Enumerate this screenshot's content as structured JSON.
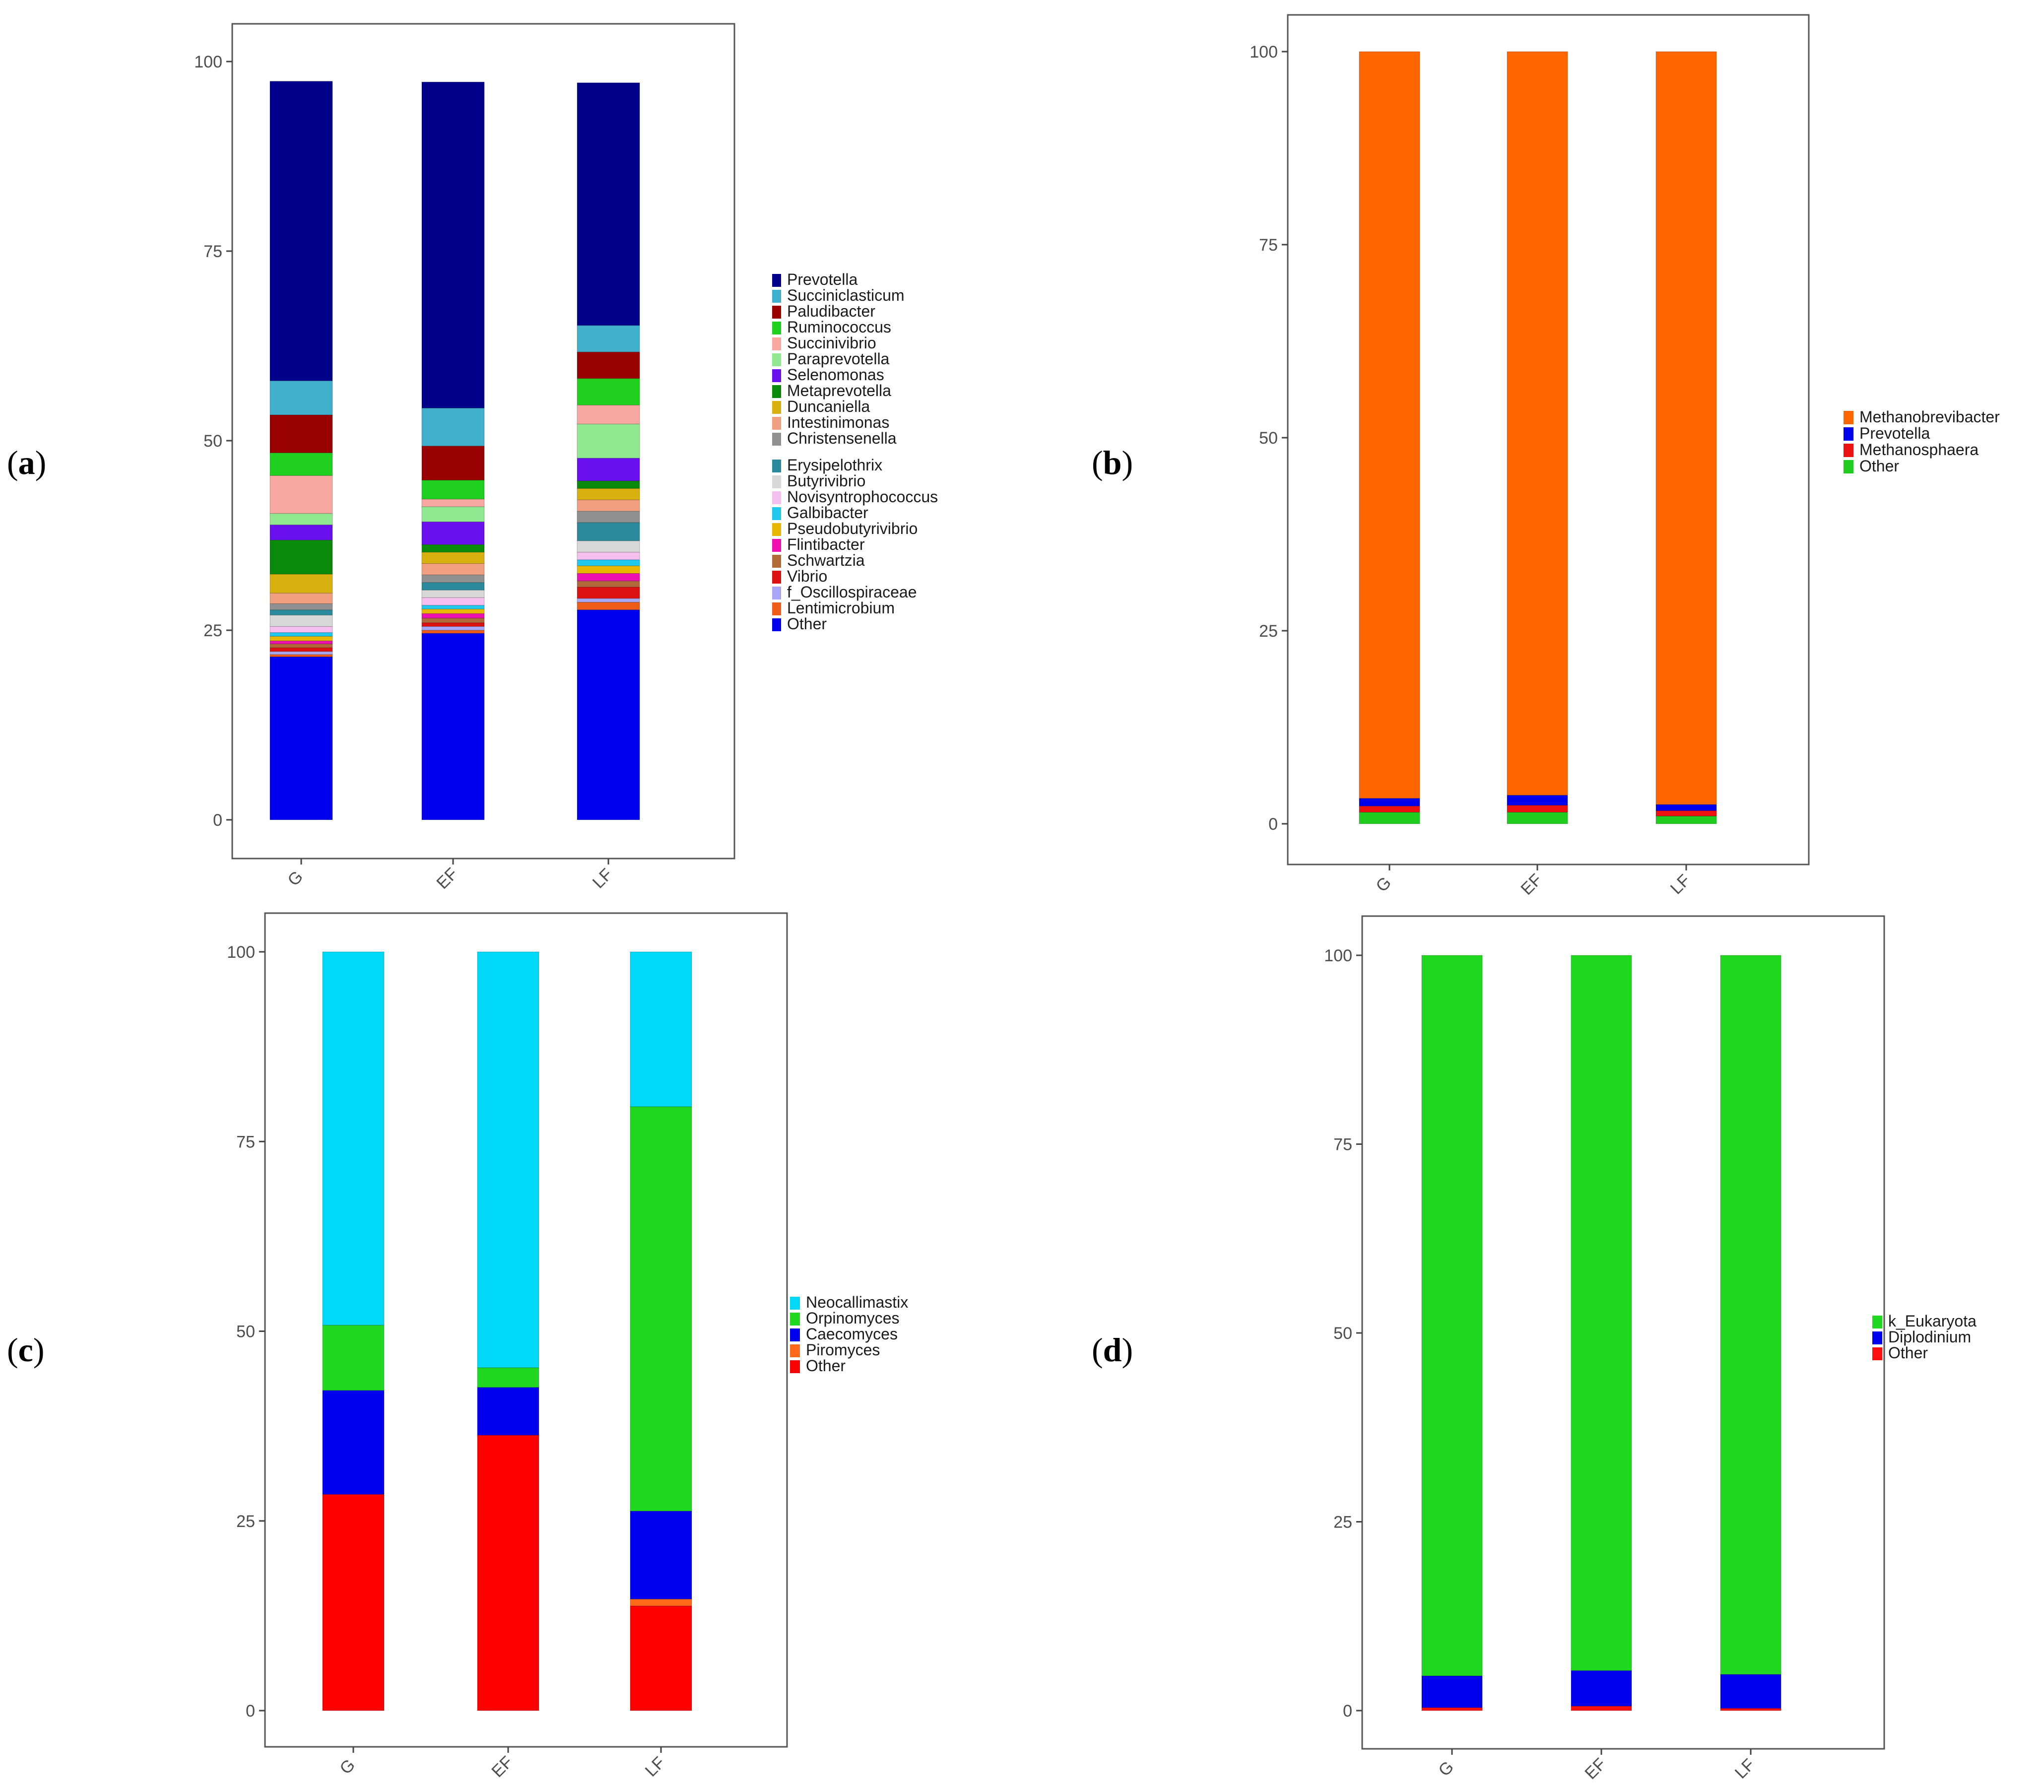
{
  "chart_data": [
    {
      "panel_label": "a",
      "type": "bar",
      "stacked": true,
      "categories": [
        "G",
        "EF",
        "LF"
      ],
      "ylim": [
        0,
        100
      ],
      "yticks": [
        0,
        25,
        50,
        75,
        100
      ],
      "legend_position": "right",
      "series": [
        {
          "name": "Other",
          "color": "#0000ee",
          "values": [
            21.5,
            24.6,
            27.7
          ]
        },
        {
          "name": "Lentimicrobium",
          "color": "#ee5c1a",
          "values": [
            0.3,
            0.4,
            1.0
          ]
        },
        {
          "name": "f_Oscillospiraceae",
          "color": "#a7a7f5",
          "values": [
            0.4,
            0.5,
            0.5
          ]
        },
        {
          "name": "Vibrio",
          "color": "#dd1111",
          "values": [
            0.5,
            0.5,
            1.5
          ]
        },
        {
          "name": "Schwartzia",
          "color": "#b06a3a",
          "values": [
            0.5,
            0.6,
            0.8
          ]
        },
        {
          "name": "Flintibacter",
          "color": "#ee10b0",
          "values": [
            0.4,
            0.6,
            1.0
          ]
        },
        {
          "name": "Pseudobutyrivibrio",
          "color": "#e8b800",
          "values": [
            0.6,
            0.6,
            1.0
          ]
        },
        {
          "name": "Galbibacter",
          "color": "#20c8ee",
          "values": [
            0.5,
            0.5,
            0.8
          ]
        },
        {
          "name": "Novisyntrophococcus",
          "color": "#f5c0f0",
          "values": [
            0.8,
            1.0,
            1.0
          ]
        },
        {
          "name": "Butyrivibrio",
          "color": "#d8d8d8",
          "values": [
            1.5,
            1.0,
            1.5
          ]
        },
        {
          "name": "Erysipelothrix",
          "color": "#2a8a9c",
          "values": [
            0.7,
            1.0,
            2.4
          ]
        },
        {
          "name": "Christensenella",
          "color": "#909090",
          "values": [
            0.8,
            1.0,
            1.5
          ]
        },
        {
          "name": "Intestinimonas",
          "color": "#f0a080",
          "values": [
            1.4,
            1.5,
            1.5
          ]
        },
        {
          "name": "Duncaniella",
          "color": "#d8b010",
          "values": [
            2.5,
            1.5,
            1.5
          ]
        },
        {
          "name": "Metaprevotella",
          "color": "#0a8a0a",
          "values": [
            4.5,
            1.0,
            1.0
          ]
        },
        {
          "name": "Selenomonas",
          "color": "#6a10ee",
          "values": [
            2.0,
            3.0,
            3.0
          ]
        },
        {
          "name": "Paraprevotella",
          "color": "#90e890",
          "values": [
            1.5,
            2.0,
            4.5
          ]
        },
        {
          "name": "Succinivibrio",
          "color": "#f8a8a0",
          "values": [
            5.0,
            1.0,
            2.5
          ]
        },
        {
          "name": "Ruminococcus",
          "color": "#20d020",
          "values": [
            3.0,
            2.5,
            3.5
          ]
        },
        {
          "name": "Paludibacter",
          "color": "#990000",
          "values": [
            5.0,
            4.5,
            3.5
          ]
        },
        {
          "name": "Succiniclasticum",
          "color": "#40b0cc",
          "values": [
            4.5,
            5.0,
            3.5
          ]
        },
        {
          "name": "Prevotella",
          "color": "#00008b",
          "values": [
            39.5,
            43.0,
            32.0
          ]
        }
      ],
      "legend_order": [
        "Prevotella",
        "Succiniclasticum",
        "Paludibacter",
        "Ruminococcus",
        "Succinivibrio",
        "Paraprevotella",
        "Selenomonas",
        "Metaprevotella",
        "Duncaniella",
        "Intestinimonas",
        "Christensenella",
        "Erysipelothrix",
        "Butyrivibrio",
        "Novisyntrophococcus",
        "Galbibacter",
        "Pseudobutyrivibrio",
        "Flintibacter",
        "Schwartzia",
        "Vibrio",
        "f_Oscillospiraceae",
        "Lentimicrobium",
        "Other"
      ]
    },
    {
      "panel_label": "b",
      "type": "bar",
      "stacked": true,
      "categories": [
        "G",
        "EF",
        "LF"
      ],
      "ylim": [
        0,
        100
      ],
      "yticks": [
        0,
        25,
        50,
        75,
        100
      ],
      "legend_position": "right",
      "series": [
        {
          "name": "Other",
          "color": "#20cc20",
          "values": [
            1.5,
            1.5,
            1.0
          ]
        },
        {
          "name": "Methanosphaera",
          "color": "#ee1111",
          "values": [
            0.8,
            0.9,
            0.7
          ]
        },
        {
          "name": "Prevotella",
          "color": "#0000ee",
          "values": [
            1.0,
            1.3,
            0.8
          ]
        },
        {
          "name": "Methanobrevibacter",
          "color": "#ff6600",
          "values": [
            96.7,
            96.3,
            97.5
          ]
        }
      ],
      "legend_order": [
        "Methanobrevibacter",
        "Prevotella",
        "Methanosphaera",
        "Other"
      ]
    },
    {
      "panel_label": "c",
      "type": "bar",
      "stacked": true,
      "categories": [
        "G",
        "EF",
        "LF"
      ],
      "ylim": [
        0,
        100
      ],
      "yticks": [
        0,
        25,
        50,
        75,
        100
      ],
      "legend_position": "right",
      "series": [
        {
          "name": "Other",
          "color": "#ff0000",
          "values": [
            28.5,
            36.3,
            13.8
          ]
        },
        {
          "name": "Piromyces",
          "color": "#ff6a1a",
          "values": [
            0.0,
            0.0,
            0.9
          ]
        },
        {
          "name": "Caecomyces",
          "color": "#0000ee",
          "values": [
            13.7,
            6.3,
            11.6
          ]
        },
        {
          "name": "Orpinomyces",
          "color": "#20d820",
          "values": [
            8.6,
            2.6,
            53.3
          ]
        },
        {
          "name": "Neocallimastix",
          "color": "#00d8f8",
          "values": [
            49.2,
            54.8,
            20.4
          ]
        }
      ],
      "legend_order": [
        "Neocallimastix",
        "Orpinomyces",
        "Caecomyces",
        "Piromyces",
        "Other"
      ]
    },
    {
      "panel_label": "d",
      "type": "bar",
      "stacked": true,
      "categories": [
        "G",
        "EF",
        "LF"
      ],
      "ylim": [
        0,
        100
      ],
      "yticks": [
        0,
        25,
        50,
        75,
        100
      ],
      "legend_position": "right",
      "series": [
        {
          "name": "Other",
          "color": "#ff1010",
          "values": [
            0.4,
            0.6,
            0.3
          ]
        },
        {
          "name": "Diplodinium",
          "color": "#0000ee",
          "values": [
            4.2,
            4.7,
            4.5
          ]
        },
        {
          "name": "k_Eukaryota",
          "color": "#20d820",
          "values": [
            95.4,
            94.7,
            95.2
          ]
        }
      ],
      "legend_order": [
        "k_Eukaryota",
        "Diplodinium",
        "Other"
      ]
    }
  ]
}
